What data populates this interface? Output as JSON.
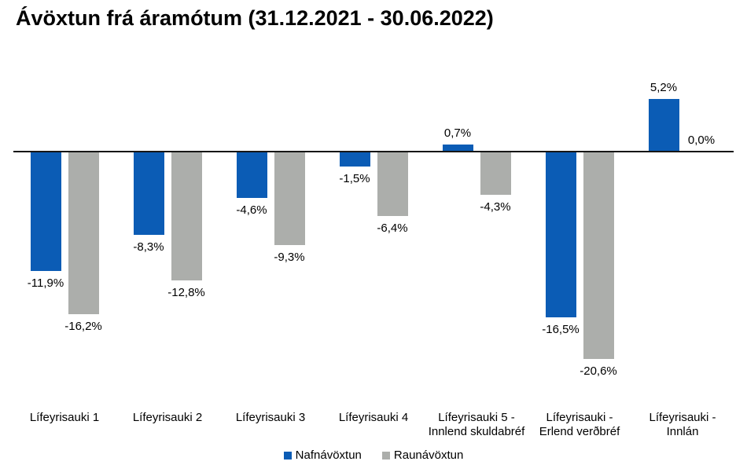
{
  "chart_data": {
    "type": "bar",
    "title": "Ávöxtun frá áramótum (31.12.2021 - 30.06.2022)",
    "categories": [
      "Lífeyrisauki 1",
      "Lífeyrisauki 2",
      "Lífeyrisauki 3",
      "Lífeyrisauki 4",
      "Lífeyrisauki 5 -\nInnlend skuldabréf",
      "Lífeyrisauki  -\nErlend verðbréf",
      "Lífeyrisauki -\nInnlán"
    ],
    "series": [
      {
        "name": "Nafnávöxtun",
        "color": "#0B5CB5",
        "values": [
          -11.9,
          -8.3,
          -4.6,
          -1.5,
          0.7,
          -16.5,
          5.2
        ],
        "labels": [
          "-11,9%",
          "-8,3%",
          "-4,6%",
          "-1,5%",
          "0,7%",
          "-16,5%",
          "5,2%"
        ]
      },
      {
        "name": "Raunávöxtun",
        "color": "#ACAEAB",
        "values": [
          -16.2,
          -12.8,
          -9.3,
          -6.4,
          -4.3,
          -20.6,
          0.0
        ],
        "labels": [
          "-16,2%",
          "-12,8%",
          "-9,3%",
          "-6,4%",
          "-4,3%",
          "-20,6%",
          "0,0%"
        ]
      }
    ],
    "axis_color": "#161616",
    "ylim": [
      -22,
      7
    ],
    "grid": false,
    "legend_position": "bottom-center"
  }
}
